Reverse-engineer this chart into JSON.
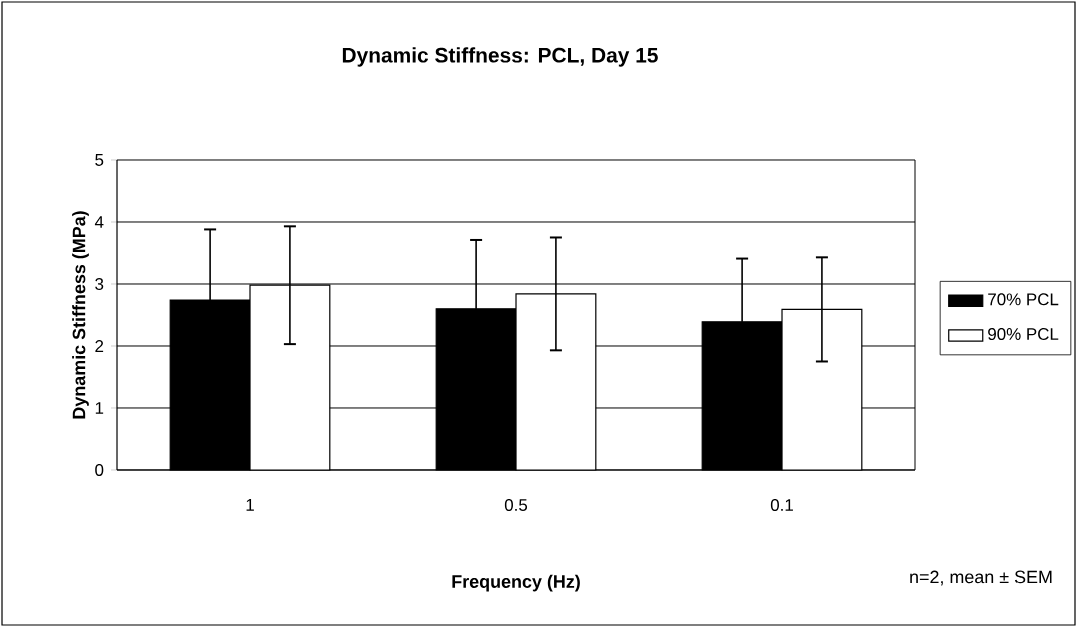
{
  "chart_data": {
    "type": "bar",
    "title": "Dynamic Stiffness: PCL, Day 15",
    "xlabel": "Frequency (Hz)",
    "ylabel": "Dynamic Stiffness (MPa)",
    "annotations": [
      "n=2, mean ± SEM"
    ],
    "categories": [
      "1",
      "0.5",
      "0.1"
    ],
    "series": [
      {
        "name": "70% PCL",
        "color": "#000000",
        "values": [
          2.74,
          2.6,
          2.39
        ],
        "errors": [
          1.14,
          1.11,
          1.02
        ]
      },
      {
        "name": "90% PCL",
        "color": "#ffffff",
        "values": [
          2.98,
          2.84,
          2.59
        ],
        "errors": [
          0.95,
          0.91,
          0.84
        ]
      }
    ],
    "ylim": [
      0,
      5
    ],
    "yticks": [
      0,
      1,
      2,
      3,
      4,
      5
    ],
    "grid": "y",
    "legend": "right"
  }
}
